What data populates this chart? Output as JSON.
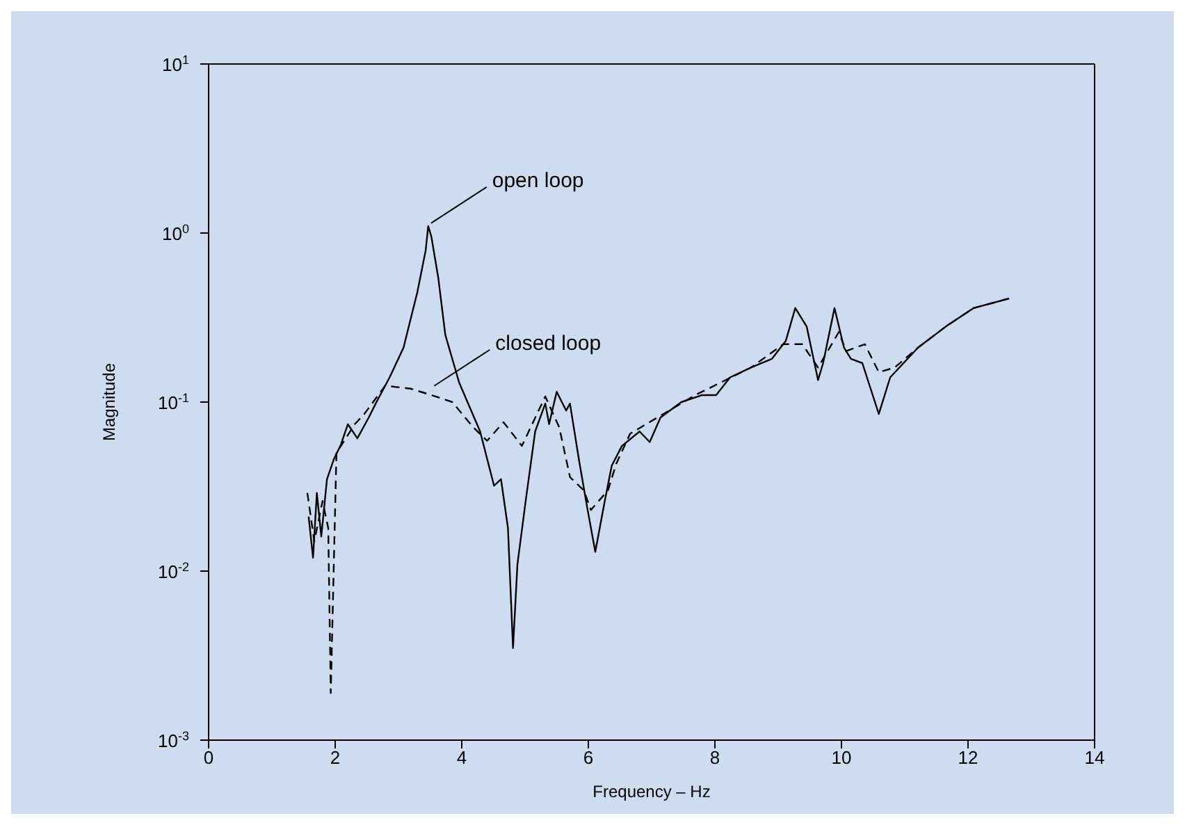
{
  "chart_data": {
    "type": "line",
    "xlabel": "Frequency – Hz",
    "ylabel": "Magnitude",
    "log": "y",
    "xlim": [
      0,
      14
    ],
    "xticks": [
      0,
      2,
      4,
      6,
      8,
      10,
      12,
      14
    ],
    "ylim": [
      0.001,
      10
    ],
    "yticks": [
      {
        "value": 0.001,
        "label": "10$^{-3}$"
      },
      {
        "value": 0.01,
        "label": "10$^{-2}$"
      },
      {
        "value": 0.1,
        "label": "10$^{-1}$"
      },
      {
        "value": 1,
        "label": "10$^{0}$"
      },
      {
        "value": 10,
        "label": "10$^{1}$"
      }
    ],
    "marker": "none",
    "series": [
      {
        "color": "#000000",
        "line_style": "solid",
        "x": [
          1.58,
          1.65,
          1.71,
          1.78,
          1.87,
          1.98,
          2.09,
          2.2,
          2.35,
          2.53,
          2.64,
          2.86,
          3.08,
          3.3,
          3.43,
          3.47,
          3.52,
          3.63,
          3.74,
          3.96,
          4.29,
          4.51,
          4.62,
          4.73,
          4.81,
          4.88,
          5.01,
          5.16,
          5.32,
          5.38,
          5.5,
          5.65,
          5.71,
          5.85,
          5.98,
          6.11,
          6.26,
          6.37,
          6.53,
          6.81,
          6.97,
          7.14,
          7.47,
          7.8,
          8.02,
          8.24,
          8.57,
          8.9,
          9.12,
          9.27,
          9.45,
          9.63,
          9.71,
          9.89,
          10.04,
          10.15,
          10.33,
          10.59,
          10.77,
          11.21,
          11.65,
          12.09,
          12.65
        ],
        "values": [
          0.021,
          0.012,
          0.029,
          0.016,
          0.035,
          0.046,
          0.056,
          0.074,
          0.061,
          0.081,
          0.098,
          0.14,
          0.21,
          0.45,
          0.79,
          1.1,
          0.95,
          0.54,
          0.25,
          0.13,
          0.067,
          0.032,
          0.035,
          0.018,
          0.0035,
          0.011,
          0.026,
          0.067,
          0.098,
          0.074,
          0.115,
          0.089,
          0.098,
          0.046,
          0.024,
          0.013,
          0.026,
          0.042,
          0.055,
          0.067,
          0.058,
          0.081,
          0.1,
          0.11,
          0.11,
          0.14,
          0.16,
          0.18,
          0.23,
          0.36,
          0.28,
          0.135,
          0.17,
          0.36,
          0.21,
          0.18,
          0.17,
          0.085,
          0.14,
          0.21,
          0.28,
          0.36,
          0.41
        ]
      },
      {
        "color": "#000000",
        "line_style": "dashed",
        "x": [
          1.56,
          1.67,
          1.8,
          1.89,
          1.93,
          2.02,
          2.31,
          2.46,
          2.79,
          3.19,
          3.52,
          3.85,
          4.18,
          4.4,
          4.66,
          4.95,
          5.32,
          5.54,
          5.71,
          5.93,
          6.04,
          6.31,
          6.44,
          6.66,
          7.69,
          8.57,
          9.08,
          9.38,
          9.63,
          9.96,
          10.07,
          10.37,
          10.59,
          10.84,
          11.21,
          11.65,
          12.09,
          12.65
        ],
        "values": [
          0.029,
          0.015,
          0.026,
          0.018,
          0.0019,
          0.05,
          0.074,
          0.085,
          0.125,
          0.12,
          0.11,
          0.1,
          0.071,
          0.059,
          0.076,
          0.055,
          0.108,
          0.071,
          0.036,
          0.03,
          0.023,
          0.03,
          0.043,
          0.065,
          0.11,
          0.16,
          0.22,
          0.22,
          0.16,
          0.26,
          0.2,
          0.22,
          0.15,
          0.16,
          0.21,
          0.28,
          0.36,
          0.41
        ]
      }
    ],
    "annotations": [
      {
        "text": "open loop",
        "x": 3.47,
        "y": 1.1
      },
      {
        "text": "closed loop",
        "x": 3.52,
        "y": 0.12
      }
    ]
  }
}
